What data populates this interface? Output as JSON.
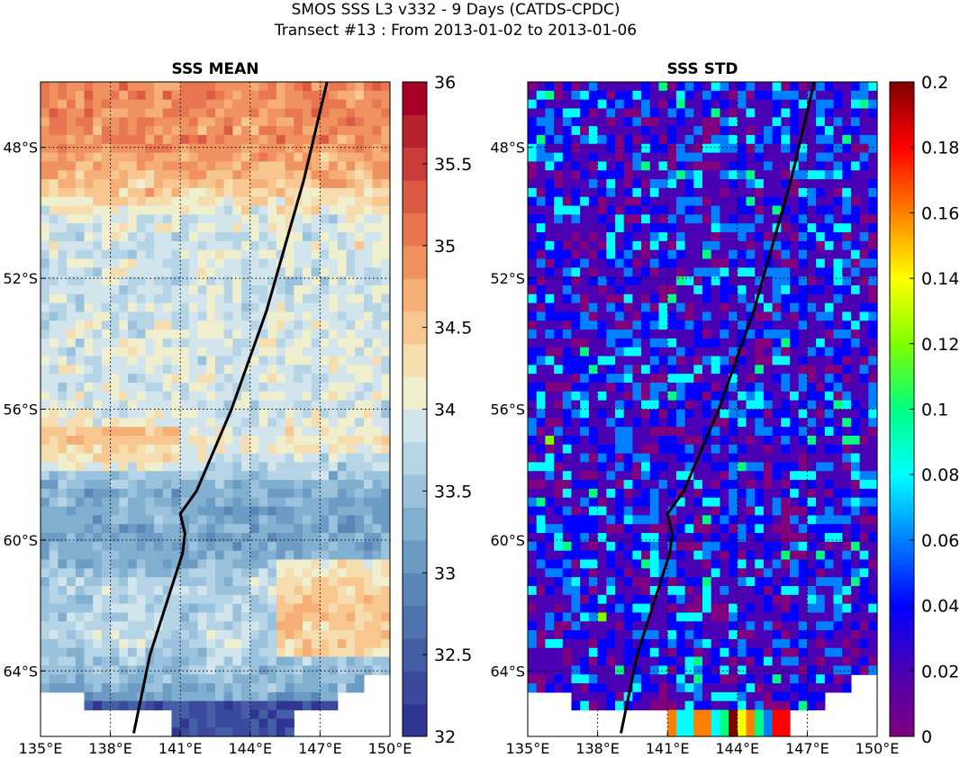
{
  "figure": {
    "title_line1": "SMOS SSS L3 v332 - 9 Days (CATDS-CPDC)",
    "title_line2": "Transect #13 : From 2013-01-02 to 2013-01-06"
  },
  "chart_data": [
    {
      "type": "heatmap",
      "title": "SSS MEAN",
      "x_range": [
        135,
        150
      ],
      "y_range": [
        -66,
        -46
      ],
      "x_ticks": [
        135,
        138,
        141,
        144,
        147,
        150
      ],
      "x_tick_labels": [
        "135°E",
        "138°E",
        "141°E",
        "144°E",
        "147°E",
        "150°E"
      ],
      "y_ticks": [
        -48,
        -52,
        -56,
        -60,
        -64
      ],
      "y_tick_labels": [
        "48°S",
        "52°S",
        "56°S",
        "60°S",
        "64°S"
      ],
      "grid": true,
      "colorbar": {
        "min": 32,
        "max": 36,
        "levels": 20,
        "ticks": [
          32,
          32.5,
          33,
          33.5,
          34,
          34.5,
          35,
          35.5,
          36
        ],
        "tick_labels": [
          "32",
          "32.5",
          "33",
          "33.5",
          "34",
          "34.5",
          "35",
          "35.5",
          "36"
        ],
        "colors": [
          "#313695",
          "#3b4a9d",
          "#455fa6",
          "#4f73ae",
          "#5b87b8",
          "#6c9bc4",
          "#81afd0",
          "#9ac2dc",
          "#b5d4e6",
          "#d2e5ec",
          "#efefce",
          "#f6ddb0",
          "#f7c78f",
          "#f5ae75",
          "#f0925f",
          "#e87650",
          "#dc5a44",
          "#cb3d3a",
          "#b7232f",
          "#a50026"
        ]
      },
      "zonal_mean_by_lat": [
        [
          -46,
          35.0
        ],
        [
          -48,
          34.9
        ],
        [
          -49,
          34.6
        ],
        [
          -50,
          34.0
        ],
        [
          -52,
          33.8
        ],
        [
          -54,
          33.95
        ],
        [
          -56,
          33.9
        ],
        [
          -57,
          34.2
        ],
        [
          -58.5,
          33.3
        ],
        [
          -60,
          33.2
        ],
        [
          -61.5,
          33.7
        ],
        [
          -63,
          33.8
        ],
        [
          -64,
          33.4
        ],
        [
          -66,
          33.0
        ]
      ],
      "land_mask_below_lat": -64,
      "transect": [
        [
          147.3,
          -46.0
        ],
        [
          146.3,
          -49.0
        ],
        [
          144.7,
          -53.0
        ],
        [
          143.2,
          -56.0
        ],
        [
          141.7,
          -58.5
        ],
        [
          141.0,
          -59.2
        ],
        [
          141.2,
          -59.8
        ],
        [
          141.1,
          -60.4
        ],
        [
          140.6,
          -61.5
        ],
        [
          139.7,
          -63.5
        ],
        [
          139.0,
          -65.9
        ]
      ]
    },
    {
      "type": "heatmap",
      "title": "SSS STD",
      "x_range": [
        135,
        150
      ],
      "y_range": [
        -66,
        -46
      ],
      "x_ticks": [
        135,
        138,
        141,
        144,
        147,
        150
      ],
      "x_tick_labels": [
        "135°E",
        "138°E",
        "141°E",
        "144°E",
        "147°E",
        "150°E"
      ],
      "y_ticks": [
        -48,
        -52,
        -56,
        -60,
        -64
      ],
      "y_tick_labels": [
        "48°S",
        "52°S",
        "56°S",
        "60°S",
        "64°S"
      ],
      "grid": true,
      "colorbar": {
        "min": 0,
        "max": 0.2,
        "ticks": [
          0,
          0.02,
          0.04,
          0.06,
          0.08,
          0.1,
          0.12,
          0.14,
          0.16,
          0.18,
          0.2
        ],
        "tick_labels": [
          "0",
          "0.02",
          "0.04",
          "0.06",
          "0.08",
          "0.1",
          "0.12",
          "0.14",
          "0.16",
          "0.18",
          "0.2"
        ],
        "colors": [
          "#800080",
          "#4b00b4",
          "#0000ff",
          "#0080ff",
          "#00ffff",
          "#00ff80",
          "#80ff00",
          "#ffff00",
          "#ff8000",
          "#ff0000",
          "#800000"
        ]
      },
      "typical_range": [
        0,
        0.1
      ],
      "land_mask_below_lat": -64,
      "transect": [
        [
          147.3,
          -46.0
        ],
        [
          146.3,
          -49.0
        ],
        [
          144.7,
          -53.0
        ],
        [
          143.2,
          -56.0
        ],
        [
          141.7,
          -58.5
        ],
        [
          141.0,
          -59.2
        ],
        [
          141.2,
          -59.8
        ],
        [
          141.1,
          -60.4
        ],
        [
          140.6,
          -61.5
        ],
        [
          139.7,
          -63.5
        ],
        [
          139.0,
          -65.9
        ]
      ]
    }
  ]
}
